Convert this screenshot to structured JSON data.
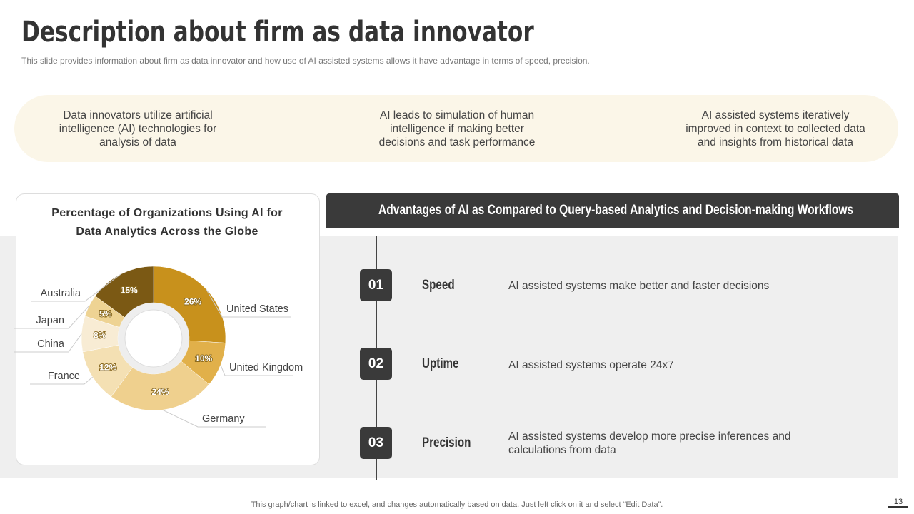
{
  "header": {
    "title": "Description about firm as data innovator",
    "subtitle": "This slide provides  information about firm as data innovator  and how use of AI assisted systems allows it have  advantage  in terms of speed,  precision."
  },
  "highlights": [
    "Data innovators utilize artificial intelligence (AI) technologies for analysis of data",
    "AI leads to simulation of human intelligence if making better decisions and task performance",
    "AI assisted systems iteratively improved in context to collected data and insights from historical data"
  ],
  "chart_data": {
    "type": "pie",
    "donut": true,
    "title": "Percentage of Organizations Using AI for Data Analytics Across the Globe",
    "categories": [
      "United States",
      "United Kingdom",
      "Germany",
      "France",
      "China",
      "Japan",
      "Australia"
    ],
    "values": [
      26,
      10,
      24,
      12,
      8,
      5,
      15
    ],
    "value_labels": [
      "26%",
      "10%",
      "24%",
      "12%",
      "8%",
      "5%",
      "15%"
    ],
    "colors": [
      "#c8911c",
      "#e1b04a",
      "#efd08e",
      "#f4e0b3",
      "#f8ecd4",
      "#eed393",
      "#7b5914"
    ]
  },
  "advantages": {
    "title": "Advantages of AI as Compared to Query-based Analytics and Decision-making Workflows",
    "items": [
      {
        "number": "01",
        "name": "Speed",
        "description": "AI assisted systems make better and faster decisions"
      },
      {
        "number": "02",
        "name": "Uptime",
        "description": "AI assisted systems operate 24x7"
      },
      {
        "number": "03",
        "name": "Precision",
        "description": "AI assisted systems develop more precise inferences and calculations from data"
      }
    ]
  },
  "footer": {
    "note": "This graph/chart is linked to excel,  and changes automatically based on data. Just left click on it and select “Edit Data”.",
    "page": "13"
  }
}
